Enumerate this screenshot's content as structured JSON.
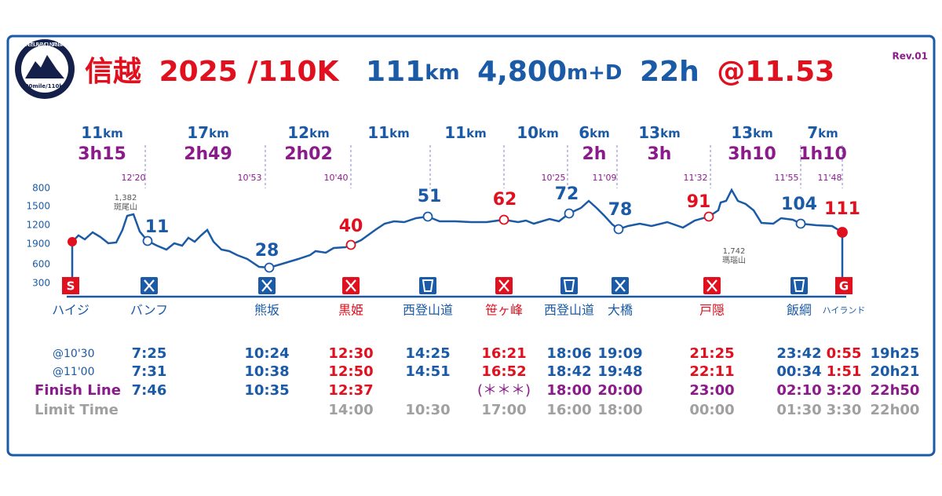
{
  "header": {
    "logo_ring": "SHINETSU FIVE MOUNTAINS TRAIL",
    "logo_sub": "100mile/110km",
    "title_a": "信越",
    "title_b": "2025 /110K",
    "dist": "111",
    "dist_unit": "km",
    "gain": "4,800",
    "gain_unit": "m+D",
    "time": "22h",
    "pace": "@11.53",
    "rev": "Rev.01"
  },
  "segments_unit": "km",
  "segments": [
    {
      "dist": "11",
      "time": "3h15"
    },
    {
      "dist": "17",
      "time": "2h49"
    },
    {
      "dist": "12",
      "time": "2h02"
    },
    {
      "dist": "11",
      "time": null
    },
    {
      "dist": "11",
      "time": null
    },
    {
      "dist": "10",
      "time": null
    },
    {
      "dist": "6",
      "time": "2h"
    },
    {
      "dist": "13",
      "time": "3h"
    },
    {
      "dist": "13",
      "time": "3h10"
    },
    {
      "dist": "7",
      "time": "1h10"
    }
  ],
  "splits": [
    "12'20",
    "10'53",
    "10'40",
    "10'25",
    "11'09",
    "11'32",
    "11'55",
    "11'48"
  ],
  "axis_labels": [
    "800",
    "1500",
    "1200",
    "1900",
    "600",
    "300"
  ],
  "peaks": [
    {
      "elev": "1,382",
      "name": "斑尾山"
    },
    {
      "elev": "1,742",
      "name": "瑪瑙山"
    }
  ],
  "points": [
    {
      "km": "11",
      "color": "#1a5aa6"
    },
    {
      "km": "28",
      "color": "#1a5aa6"
    },
    {
      "km": "40",
      "color": "#e0101e"
    },
    {
      "km": "51",
      "color": "#1a5aa6"
    },
    {
      "km": "62",
      "color": "#e0101e"
    },
    {
      "km": "72",
      "color": "#1a5aa6"
    },
    {
      "km": "78",
      "color": "#1a5aa6"
    },
    {
      "km": "91",
      "color": "#e0101e"
    },
    {
      "km": "104",
      "color": "#1a5aa6"
    },
    {
      "km": "111",
      "color": "#e0101e"
    }
  ],
  "start_badge": "S",
  "goal_badge": "G",
  "stations": [
    {
      "name": "ハイジ",
      "color": "#1a5aa6"
    },
    {
      "name": "バンフ",
      "color": "#1a5aa6"
    },
    {
      "name": "熊坂",
      "color": "#1a5aa6"
    },
    {
      "name": "黒姫",
      "color": "#e0101e"
    },
    {
      "name": "西登山道",
      "color": "#1a5aa6"
    },
    {
      "name": "笹ヶ峰",
      "color": "#e0101e"
    },
    {
      "name": "西登山道",
      "color": "#1a5aa6"
    },
    {
      "name": "大橋",
      "color": "#1a5aa6"
    },
    {
      "name": "戸隠",
      "color": "#e0101e"
    },
    {
      "name": "飯綱",
      "color": "#1a5aa6"
    },
    {
      "name": "ハイランド",
      "color": "#1a5aa6"
    }
  ],
  "table": {
    "rows": [
      {
        "label": "@10'30",
        "cells": [
          "7:25",
          "10:24",
          "12:30",
          "14:25",
          "16:21",
          "18:06",
          "19:09",
          "21:25",
          "23:42",
          "0:55",
          "19h25"
        ]
      },
      {
        "label": "@11'00",
        "cells": [
          "7:31",
          "10:38",
          "12:50",
          "14:51",
          "16:52",
          "18:42",
          "19:48",
          "22:11",
          "00:34",
          "1:51",
          "20h21"
        ]
      },
      {
        "label": "Finish Line",
        "cells": [
          "7:46",
          "10:35",
          "12:37",
          null,
          "(＊＊＊)",
          "18:00",
          "20:00",
          "23:00",
          "02:10",
          "3:20",
          "22h50"
        ]
      },
      {
        "label": "Limit Time",
        "cells": [
          null,
          null,
          "14:00",
          "10:30",
          "17:00",
          "16:00",
          "18:00",
          "00:00",
          "01:30",
          "3:30",
          "22h00"
        ]
      }
    ]
  }
}
